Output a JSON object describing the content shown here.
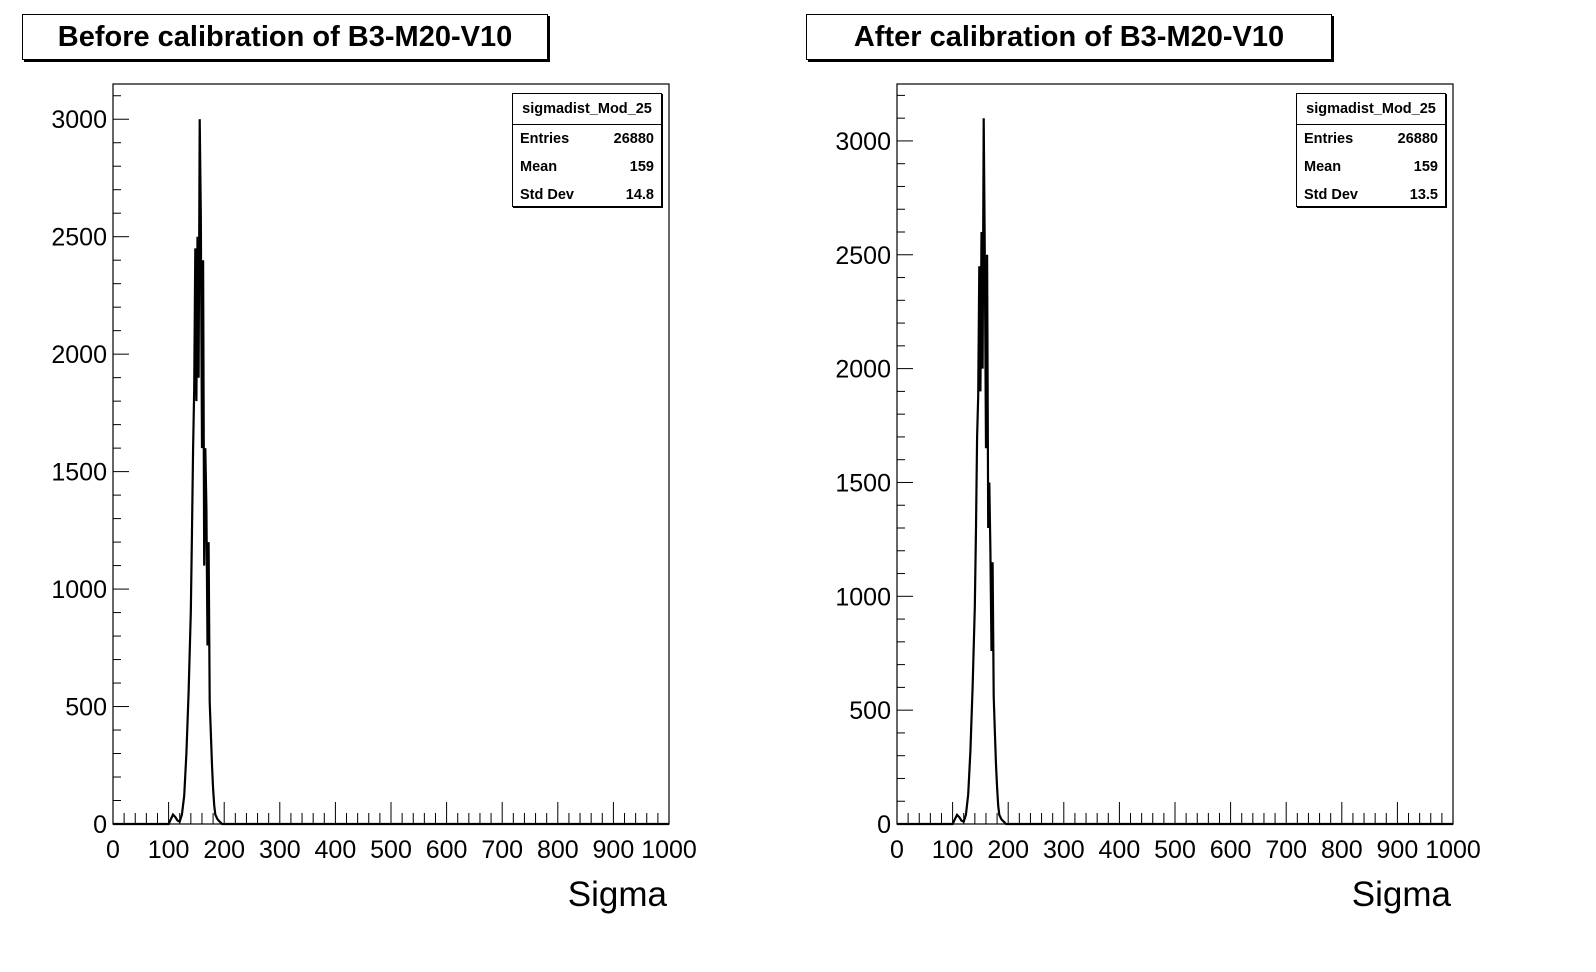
{
  "chart_data": [
    {
      "type": "line",
      "title": "Before calibration of B3-M20-V10",
      "xlabel": "Sigma",
      "ylabel": "",
      "xlim": [
        0,
        1000
      ],
      "ylim": [
        0,
        3150
      ],
      "x_ticks": [
        0,
        100,
        200,
        300,
        400,
        500,
        600,
        700,
        800,
        900,
        1000
      ],
      "y_ticks": [
        0,
        500,
        1000,
        1500,
        2000,
        2500,
        3000
      ],
      "stats": {
        "name": "sigmadist_Mod_25",
        "rows": [
          {
            "label": "Entries",
            "value": "26880"
          },
          {
            "label": "Mean",
            "value": "159"
          },
          {
            "label": "Std Dev",
            "value": "14.8"
          }
        ]
      },
      "series": [
        {
          "x": [
            0,
            100,
            104,
            108,
            112,
            116,
            120,
            124,
            128,
            132,
            136,
            140,
            142,
            144,
            146,
            148,
            150,
            152,
            154,
            156,
            158,
            160,
            162,
            164,
            166,
            168,
            170,
            172,
            174,
            176,
            178,
            180,
            182,
            184,
            188,
            192,
            196,
            200,
            1000
          ],
          "values": [
            0,
            0,
            20,
            40,
            30,
            15,
            10,
            40,
            120,
            300,
            560,
            900,
            1250,
            1600,
            1850,
            2450,
            1800,
            2500,
            1900,
            3000,
            2600,
            1600,
            2400,
            1100,
            1600,
            1350,
            760,
            1200,
            520,
            380,
            250,
            150,
            80,
            40,
            20,
            10,
            0,
            0,
            0
          ]
        }
      ]
    },
    {
      "type": "line",
      "title": "After calibration of B3-M20-V10",
      "xlabel": "Sigma",
      "ylabel": "",
      "xlim": [
        0,
        1000
      ],
      "ylim": [
        0,
        3250
      ],
      "x_ticks": [
        0,
        100,
        200,
        300,
        400,
        500,
        600,
        700,
        800,
        900,
        1000
      ],
      "y_ticks": [
        0,
        500,
        1000,
        1500,
        2000,
        2500,
        3000
      ],
      "stats": {
        "name": "sigmadist_Mod_25",
        "rows": [
          {
            "label": "Entries",
            "value": "26880"
          },
          {
            "label": "Mean",
            "value": "159"
          },
          {
            "label": "Std Dev",
            "value": "13.5"
          }
        ]
      },
      "series": [
        {
          "x": [
            0,
            100,
            104,
            108,
            112,
            116,
            120,
            124,
            128,
            132,
            136,
            140,
            142,
            144,
            146,
            148,
            150,
            152,
            154,
            156,
            158,
            160,
            162,
            164,
            166,
            168,
            170,
            172,
            174,
            176,
            178,
            180,
            182,
            184,
            188,
            192,
            196,
            200,
            1000
          ],
          "values": [
            0,
            0,
            20,
            40,
            30,
            15,
            10,
            40,
            130,
            320,
            600,
            950,
            1300,
            1700,
            1880,
            2450,
            1900,
            2600,
            2000,
            3100,
            2500,
            1650,
            2500,
            1300,
            1500,
            1200,
            760,
            1150,
            560,
            400,
            260,
            160,
            80,
            40,
            20,
            10,
            0,
            0,
            0
          ]
        }
      ]
    }
  ]
}
